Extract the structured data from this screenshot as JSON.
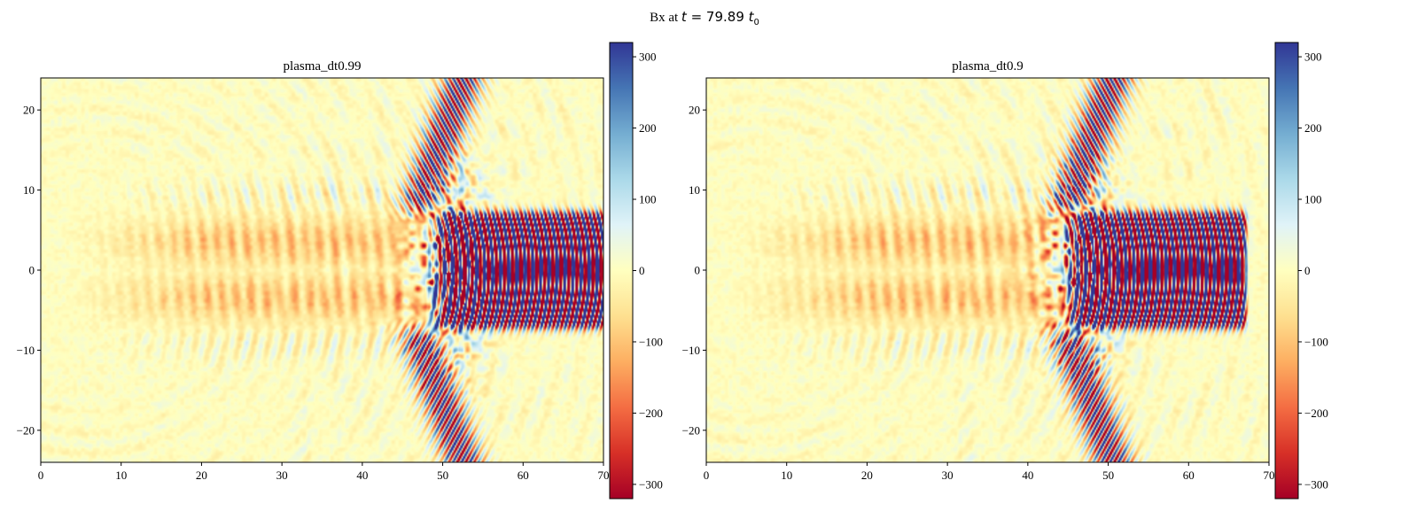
{
  "figure": {
    "suptitle_text": "Bx at",
    "suptitle_math_t": "t",
    "suptitle_math_eq": " = 79.89 ",
    "suptitle_math_unit": "t",
    "suptitle_math_sub": "0"
  },
  "chart_data": [
    {
      "type": "heatmap",
      "title": "plasma_dt0.99",
      "field": "Bx",
      "xlim": [
        0,
        70
      ],
      "ylim": [
        -24,
        24
      ],
      "xticks": [
        0,
        10,
        20,
        30,
        40,
        50,
        60,
        70
      ],
      "yticks": [
        -20,
        -10,
        0,
        10,
        20
      ],
      "colormap": "RdYlBu",
      "colorbar": {
        "vmin": -320,
        "vmax": 320,
        "ticks": [
          -300,
          -200,
          -100,
          0,
          100,
          200,
          300
        ]
      },
      "features": {
        "laser_pulse_x": [
          49,
          70
        ],
        "laser_pulse_y": [
          -8,
          8
        ],
        "pulse_wavelength": 1.0,
        "pulse_amplitude": 320,
        "wake_region_x": [
          5,
          48
        ],
        "wake_amplitude": -150,
        "bow_wave_x": [
          44,
          58
        ],
        "bow_wave_amplitude": 300
      }
    },
    {
      "type": "heatmap",
      "title": "plasma_dt0.9",
      "field": "Bx",
      "xlim": [
        0,
        70
      ],
      "ylim": [
        -24,
        24
      ],
      "xticks": [
        0,
        10,
        20,
        30,
        40,
        50,
        60,
        70
      ],
      "yticks": [
        -20,
        -10,
        0,
        10,
        20
      ],
      "colormap": "RdYlBu",
      "colorbar": {
        "vmin": -320,
        "vmax": 320,
        "ticks": [
          -300,
          -200,
          -100,
          0,
          100,
          200,
          300
        ]
      },
      "features": {
        "laser_pulse_x": [
          45,
          67
        ],
        "laser_pulse_y": [
          -8,
          8
        ],
        "pulse_wavelength": 1.0,
        "pulse_amplitude": 320,
        "wake_region_x": [
          5,
          45
        ],
        "wake_amplitude": -150,
        "bow_wave_x": [
          42,
          55
        ],
        "bow_wave_amplitude": 300
      }
    }
  ],
  "colors": {
    "colormap_stops": [
      "#a50026",
      "#d73027",
      "#f46d43",
      "#fdae61",
      "#fee090",
      "#ffffbf",
      "#e0f3f8",
      "#abd9e9",
      "#74add1",
      "#4575b4",
      "#313695"
    ],
    "axes": "#000000",
    "background": "#ffffff"
  }
}
